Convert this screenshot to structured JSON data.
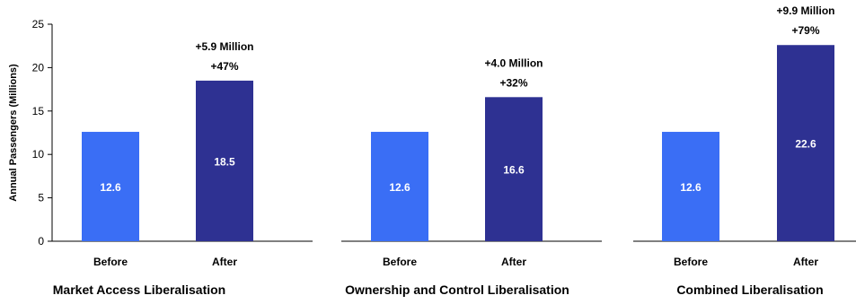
{
  "chart_data": {
    "type": "bar",
    "ylabel": "Annual Passengers (Millions)",
    "ylim": [
      0,
      25
    ],
    "yticks": [
      0,
      5,
      10,
      15,
      20,
      25
    ],
    "grid": false,
    "colors": {
      "before": "#3a6ef5",
      "after": "#2e3192",
      "axis": "#000000",
      "value_label": "#ffffff"
    },
    "panels": [
      {
        "title": "Market Access Liberalisation",
        "categories": [
          "Before",
          "After"
        ],
        "values": [
          12.6,
          18.5
        ],
        "value_labels": [
          "12.6",
          "18.5"
        ],
        "annotation": [
          "+5.9 Million",
          "+47%"
        ]
      },
      {
        "title": "Ownership and Control Liberalisation",
        "categories": [
          "Before",
          "After"
        ],
        "values": [
          12.6,
          16.6
        ],
        "value_labels": [
          "12.6",
          "16.6"
        ],
        "annotation": [
          "+4.0 Million",
          "+32%"
        ]
      },
      {
        "title": "Combined Liberalisation",
        "categories": [
          "Before",
          "After"
        ],
        "values": [
          12.6,
          22.6
        ],
        "value_labels": [
          "12.6",
          "22.6"
        ],
        "annotation": [
          "+9.9 Million",
          "+79%"
        ]
      }
    ]
  }
}
